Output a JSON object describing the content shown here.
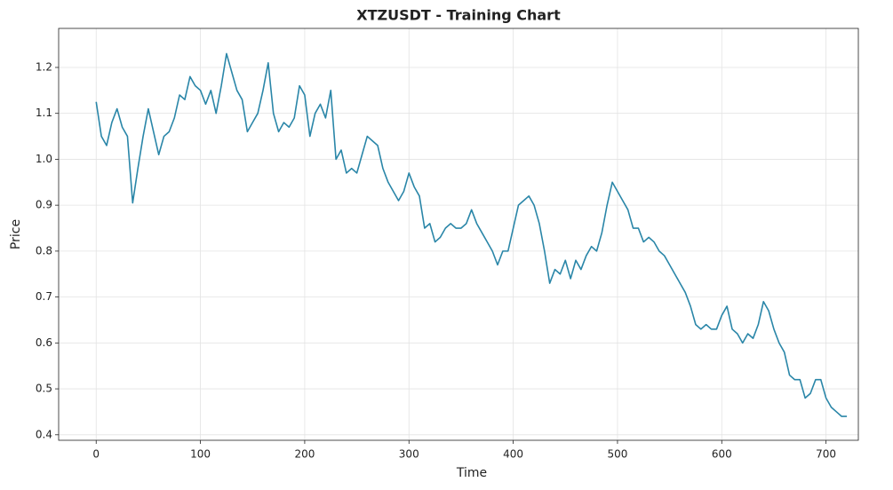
{
  "chart_data": {
    "type": "line",
    "title": "XTZUSDT - Training Chart",
    "x_label": "Time",
    "y_label": "Price",
    "x": [
      0,
      5,
      10,
      15,
      20,
      25,
      30,
      35,
      40,
      45,
      50,
      55,
      60,
      65,
      70,
      75,
      80,
      85,
      90,
      95,
      100,
      105,
      110,
      115,
      120,
      125,
      130,
      135,
      140,
      145,
      150,
      155,
      160,
      165,
      170,
      175,
      180,
      185,
      190,
      195,
      200,
      205,
      210,
      215,
      220,
      225,
      230,
      235,
      240,
      245,
      250,
      255,
      260,
      265,
      270,
      275,
      280,
      285,
      290,
      295,
      300,
      305,
      310,
      315,
      320,
      325,
      330,
      335,
      340,
      345,
      350,
      355,
      360,
      365,
      370,
      375,
      380,
      385,
      390,
      395,
      400,
      405,
      410,
      415,
      420,
      425,
      430,
      435,
      440,
      445,
      450,
      455,
      460,
      465,
      470,
      475,
      480,
      485,
      490,
      495,
      500,
      505,
      510,
      515,
      520,
      525,
      530,
      535,
      540,
      545,
      550,
      555,
      560,
      565,
      570,
      575,
      580,
      585,
      590,
      595,
      600,
      605,
      610,
      615,
      620,
      625,
      630,
      635,
      640,
      645,
      650,
      655,
      660,
      665,
      670,
      675,
      680,
      685,
      690,
      695,
      700,
      705,
      710,
      715,
      720
    ],
    "series": [
      {
        "name": "Price",
        "color": "#2a86a8",
        "values": [
          1.125,
          1.05,
          1.03,
          1.08,
          1.11,
          1.07,
          1.05,
          0.905,
          0.98,
          1.05,
          1.11,
          1.06,
          1.01,
          1.05,
          1.06,
          1.09,
          1.14,
          1.13,
          1.18,
          1.16,
          1.15,
          1.12,
          1.15,
          1.1,
          1.16,
          1.23,
          1.19,
          1.15,
          1.13,
          1.06,
          1.08,
          1.1,
          1.15,
          1.21,
          1.1,
          1.06,
          1.08,
          1.07,
          1.09,
          1.16,
          1.14,
          1.05,
          1.1,
          1.12,
          1.09,
          1.15,
          1.0,
          1.02,
          0.97,
          0.98,
          0.97,
          1.01,
          1.05,
          1.04,
          1.03,
          0.98,
          0.95,
          0.93,
          0.91,
          0.93,
          0.97,
          0.94,
          0.92,
          0.85,
          0.86,
          0.82,
          0.83,
          0.85,
          0.86,
          0.85,
          0.85,
          0.86,
          0.89,
          0.86,
          0.84,
          0.82,
          0.8,
          0.77,
          0.8,
          0.8,
          0.85,
          0.9,
          0.91,
          0.92,
          0.9,
          0.86,
          0.8,
          0.73,
          0.76,
          0.75,
          0.78,
          0.74,
          0.78,
          0.76,
          0.79,
          0.81,
          0.8,
          0.84,
          0.9,
          0.95,
          0.93,
          0.91,
          0.89,
          0.85,
          0.85,
          0.82,
          0.83,
          0.82,
          0.8,
          0.79,
          0.77,
          0.75,
          0.73,
          0.71,
          0.68,
          0.64,
          0.63,
          0.64,
          0.63,
          0.63,
          0.66,
          0.68,
          0.63,
          0.62,
          0.6,
          0.62,
          0.61,
          0.64,
          0.69,
          0.67,
          0.63,
          0.6,
          0.58,
          0.53,
          0.52,
          0.52,
          0.48,
          0.49,
          0.52,
          0.52,
          0.48,
          0.46,
          0.45,
          0.44,
          0.44
        ]
      }
    ],
    "xlim": [
      -36,
      731
    ],
    "ylim": [
      0.388,
      1.285
    ],
    "xticks": [
      0,
      100,
      200,
      300,
      400,
      500,
      600,
      700
    ],
    "yticks": [
      0.4,
      0.5,
      0.6,
      0.7,
      0.8,
      0.9,
      1.0,
      1.1,
      1.2
    ],
    "grid": true
  }
}
